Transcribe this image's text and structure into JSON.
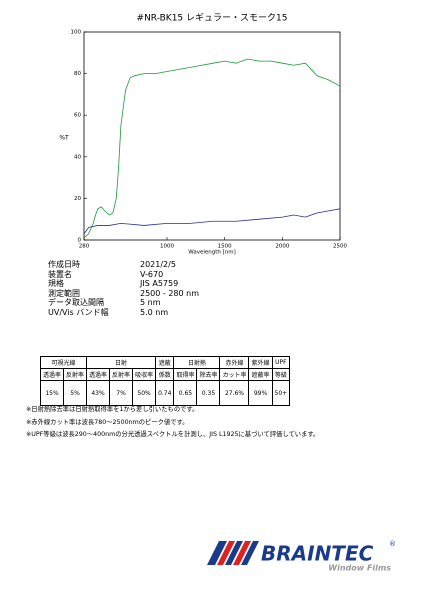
{
  "chart_data": {
    "type": "line",
    "title": "#NR-BK15 レギュラー・スモーク15",
    "y_label": "%T",
    "x_label": "Wavelength [nm]",
    "xlim": [
      280,
      2500
    ],
    "xticks": [
      280,
      1000,
      1500,
      2000,
      2500
    ],
    "ylim": [
      0,
      100
    ],
    "yticks": [
      0,
      20,
      40,
      60,
      80,
      100
    ],
    "series": [
      {
        "color": "#1a9a3a",
        "x": [
          280,
          320,
          360,
          380,
          400,
          430,
          460,
          500,
          530,
          560,
          580,
          600,
          640,
          680,
          720,
          800,
          900,
          1000,
          1200,
          1400,
          1500,
          1600,
          1700,
          1800,
          1900,
          2000,
          2100,
          2200,
          2300,
          2400,
          2500
        ],
        "values": [
          1,
          3,
          8,
          12,
          15,
          16,
          14,
          12,
          13,
          20,
          35,
          55,
          72,
          78,
          79,
          80,
          80,
          81,
          83,
          85,
          86,
          85,
          87,
          86,
          86,
          85,
          84,
          85,
          79,
          77,
          74
        ]
      },
      {
        "color": "#2a2aa0",
        "x": [
          280,
          320,
          400,
          500,
          600,
          800,
          1000,
          1200,
          1400,
          1500,
          1600,
          1800,
          2000,
          2100,
          2200,
          2300,
          2400,
          2500
        ],
        "values": [
          3,
          6,
          7,
          7,
          8,
          7,
          8,
          8,
          9,
          9,
          9,
          10,
          11,
          12,
          11,
          13,
          14,
          15
        ]
      }
    ]
  },
  "info": [
    [
      "作成日時",
      "2021/2/5"
    ],
    [
      "装置名",
      "V-670"
    ],
    [
      "規格",
      "JIS A5759"
    ],
    [
      "測定範囲",
      "2500 - 280 nm"
    ],
    [
      "データ取込間隔",
      "5 nm"
    ],
    [
      "UV/Vis バンド幅",
      "5.0 nm"
    ]
  ],
  "table": {
    "groups": [
      [
        "可視光線",
        2
      ],
      [
        "日射",
        3
      ],
      [
        "遮蔽",
        1
      ],
      [
        "日射熱",
        2
      ],
      [
        "赤外線",
        1
      ],
      [
        "紫外線",
        1
      ],
      [
        "UPF",
        1
      ]
    ],
    "subheaders": [
      "透過率",
      "反射率",
      "透過率",
      "反射率",
      "吸収率",
      "係数",
      "取得率",
      "除去率",
      "カット率",
      "遮蔽率",
      "等級"
    ],
    "values": [
      "15%",
      "5%",
      "43%",
      "7%",
      "50%",
      "0.74",
      "0.65",
      "0.35",
      "27.6%",
      "99%",
      "50+"
    ]
  },
  "notes": [
    "※日射熱除去率は日射熱取得率を1から差し引いたものです。",
    "※赤外線カット率は波長780～2500nmのピーク値です。",
    "※UPF等級は波長290～400nmの分光透過スペクトルを計測し、JIS L1925に基づいて評価しています。"
  ],
  "logo": {
    "name": "BRAINTEC",
    "mark": "®",
    "tagline": "Window Films"
  }
}
